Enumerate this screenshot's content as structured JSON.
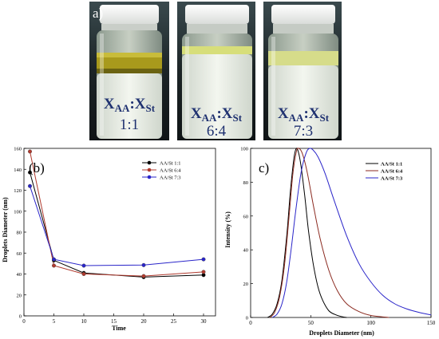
{
  "panels": {
    "a": {
      "label": "a)",
      "vials": [
        {
          "ratio_label": "XAA:XSt",
          "ratio_value": "1:1"
        },
        {
          "ratio_label": "XAA:XSt",
          "ratio_value": "6:4"
        },
        {
          "ratio_label": "XAA:XSt",
          "ratio_value": "7:3"
        }
      ]
    }
  },
  "chart_data": [
    {
      "panel": "(b)",
      "type": "line",
      "xlabel": "Time",
      "ylabel": "Droplets Diameter (nm)",
      "xlim": [
        0,
        32
      ],
      "ylim": [
        0,
        160
      ],
      "xticks": [
        "0",
        "5",
        "10",
        "15",
        "20",
        "25",
        "30"
      ],
      "yticks": [
        "0",
        "20",
        "40",
        "60",
        "80",
        "100",
        "120",
        "140",
        "160"
      ],
      "legend_position": "top-right",
      "x": [
        1,
        5,
        10,
        20,
        30
      ],
      "series": [
        {
          "name": "AA/St 1:1",
          "color": "#000000",
          "values": [
            137,
            53,
            41,
            37,
            39
          ]
        },
        {
          "name": "AA/St 6:4",
          "color": "#b03a2e",
          "values": [
            157,
            48,
            40,
            38,
            42
          ]
        },
        {
          "name": "AA/St 7:3",
          "color": "#2a25c9",
          "values": [
            124,
            54,
            48,
            48.5,
            54
          ]
        }
      ]
    },
    {
      "panel": "c)",
      "type": "line",
      "xlabel": "Droplets Diameter (nm)",
      "ylabel": "Intensity (%)",
      "xlim": [
        0,
        150
      ],
      "ylim": [
        0,
        100
      ],
      "xticks": [
        "0",
        "50",
        "100",
        "150"
      ],
      "yticks": [
        "0",
        "20",
        "40",
        "60",
        "80",
        "100"
      ],
      "legend_position": "top-right",
      "series": [
        {
          "name": "AA/St 1:1",
          "color": "#000000",
          "x": [
            14,
            18,
            22,
            26,
            30,
            33,
            36,
            38,
            40,
            42,
            45,
            48,
            52,
            56,
            60,
            65,
            70,
            75,
            80
          ],
          "values": [
            0,
            2,
            8,
            22,
            48,
            74,
            94,
            100,
            97,
            89,
            72,
            52,
            32,
            18,
            10,
            4,
            1.8,
            0.6,
            0
          ]
        },
        {
          "name": "AA/St 6:4",
          "color": "#8b2a20",
          "x": [
            16,
            20,
            24,
            28,
            32,
            35,
            38,
            40,
            43,
            47,
            52,
            58,
            65,
            72,
            80,
            90,
            100,
            115
          ],
          "values": [
            0,
            3,
            12,
            30,
            60,
            84,
            98,
            100,
            97,
            86,
            67,
            46,
            28,
            16,
            8,
            3.5,
            1.2,
            0
          ]
        },
        {
          "name": "AA/St 7:3",
          "color": "#2a25c9",
          "x": [
            18,
            22,
            26,
            30,
            34,
            38,
            42,
            46,
            49,
            52,
            56,
            62,
            70,
            80,
            90,
            100,
            110,
            120,
            130,
            140,
            150
          ],
          "values": [
            0,
            2,
            8,
            21,
            42,
            66,
            86,
            97,
            100,
            99,
            95,
            85,
            68,
            48,
            32,
            21,
            13,
            8,
            5,
            3,
            1.5
          ]
        }
      ]
    }
  ]
}
